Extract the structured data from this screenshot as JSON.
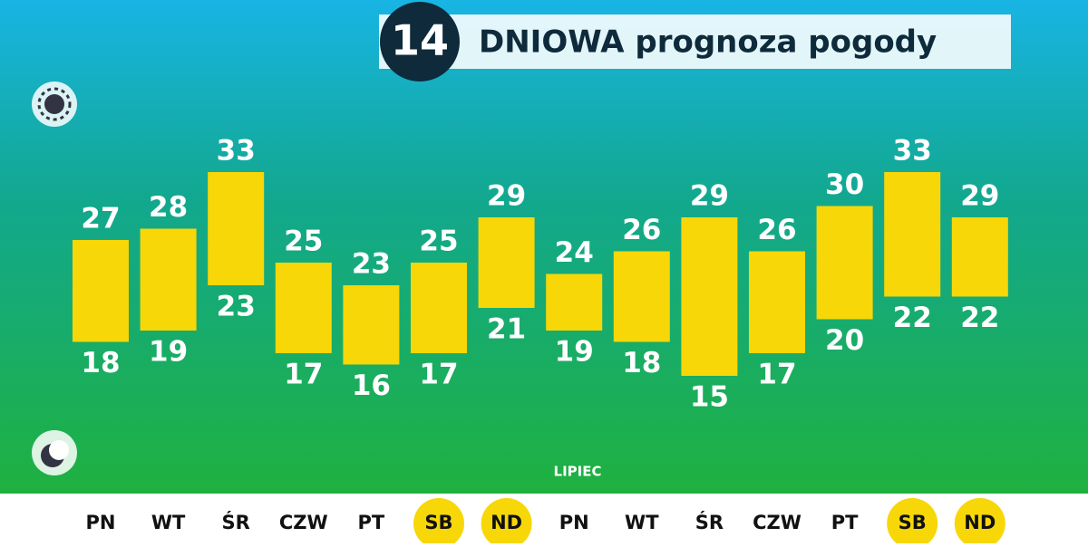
{
  "chart_data": {
    "type": "range-bar",
    "title_number": "14",
    "title": "DNIOWA prognoza pogody",
    "month": "LIPIEC",
    "categories": [
      "PN",
      "WT",
      "ŚR",
      "CZW",
      "PT",
      "SB",
      "ND",
      "PN",
      "WT",
      "ŚR",
      "CZW",
      "PT",
      "SB",
      "ND"
    ],
    "high": [
      27,
      28,
      33,
      25,
      23,
      25,
      29,
      24,
      26,
      29,
      26,
      30,
      33,
      29
    ],
    "low": [
      18,
      19,
      23,
      17,
      16,
      17,
      21,
      19,
      18,
      15,
      17,
      20,
      22,
      22
    ],
    "color": "#f7d708",
    "highlighted": [
      5,
      6,
      12,
      13
    ]
  }
}
